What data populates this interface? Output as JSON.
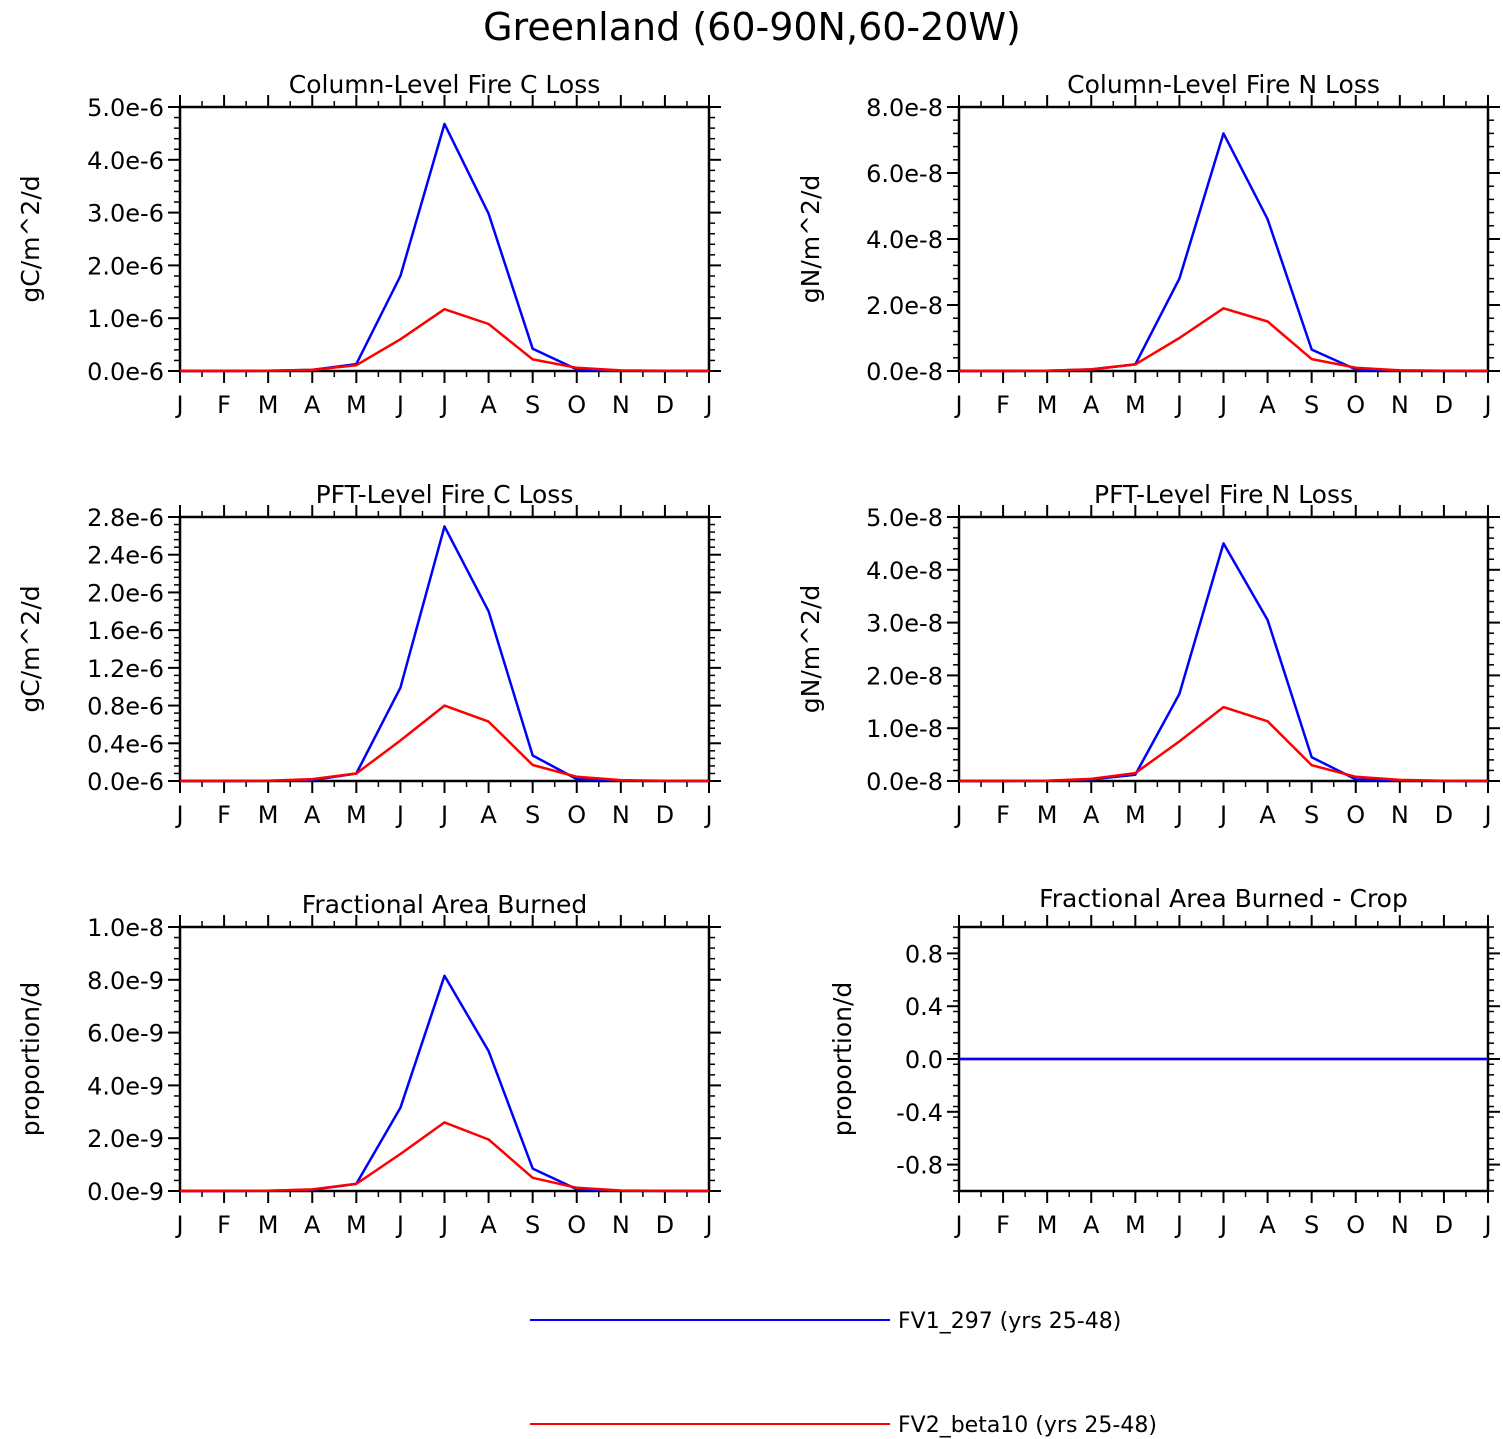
{
  "figure_title": "Greenland (60-90N,60-20W)",
  "colors": {
    "series1": "#0000ff",
    "series2": "#ff0000",
    "axis": "#000000"
  },
  "legend": [
    {
      "label": "FV1_297 (yrs 25-48)",
      "color": "#0000ff"
    },
    {
      "label": "FV2_beta10 (yrs 25-48)",
      "color": "#ff0000"
    }
  ],
  "chart_data": [
    {
      "type": "line",
      "title": "Column-Level Fire C Loss",
      "ylabel": "gC/m^2/d",
      "xlabel": "",
      "categories": [
        "J",
        "F",
        "M",
        "A",
        "M",
        "J",
        "J",
        "A",
        "S",
        "O",
        "N",
        "D",
        "J"
      ],
      "ylim": [
        0,
        5e-06
      ],
      "yticks": [
        0,
        1e-06,
        2e-06,
        3e-06,
        4e-06,
        5e-06
      ],
      "ytick_labels": [
        "0.0e-6",
        "1.0e-6",
        "2.0e-6",
        "3.0e-6",
        "4.0e-6",
        "5.0e-6"
      ],
      "series": [
        {
          "name": "FV1_297 (yrs 25-48)",
          "values": [
            0,
            0,
            3e-09,
            2e-08,
            1.3e-07,
            1.8e-06,
            4.68e-06,
            2.98e-06,
            4.2e-07,
            3e-08,
            5e-09,
            1e-09,
            0
          ]
        },
        {
          "name": "FV2_beta10 (yrs 25-48)",
          "values": [
            0,
            0,
            3e-09,
            2e-08,
            1.1e-07,
            6e-07,
            1.17e-06,
            8.9e-07,
            2.2e-07,
            6e-08,
            1.2e-08,
            3e-09,
            0
          ]
        }
      ]
    },
    {
      "type": "line",
      "title": "Column-Level Fire N Loss",
      "ylabel": "gN/m^2/d",
      "xlabel": "",
      "categories": [
        "J",
        "F",
        "M",
        "A",
        "M",
        "J",
        "J",
        "A",
        "S",
        "O",
        "N",
        "D",
        "J"
      ],
      "ylim": [
        0,
        8e-08
      ],
      "yticks": [
        0,
        2e-08,
        4e-08,
        6e-08,
        8e-08
      ],
      "ytick_labels": [
        "0.0e-8",
        "2.0e-8",
        "4.0e-8",
        "6.0e-8",
        "8.0e-8"
      ],
      "series": [
        {
          "name": "FV1_297 (yrs 25-48)",
          "values": [
            0,
            0,
            1e-10,
            5e-10,
            2e-09,
            2.8e-08,
            7.2e-08,
            4.6e-08,
            6.5e-09,
            5e-10,
            1e-10,
            2e-11,
            0
          ]
        },
        {
          "name": "FV2_beta10 (yrs 25-48)",
          "values": [
            0,
            0,
            1e-10,
            5e-10,
            2e-09,
            1e-08,
            1.9e-08,
            1.5e-08,
            3.6e-09,
            1e-09,
            2e-10,
            5e-11,
            0
          ]
        }
      ]
    },
    {
      "type": "line",
      "title": "PFT-Level Fire C Loss",
      "ylabel": "gC/m^2/d",
      "xlabel": "",
      "categories": [
        "J",
        "F",
        "M",
        "A",
        "M",
        "J",
        "J",
        "A",
        "S",
        "O",
        "N",
        "D",
        "J"
      ],
      "ylim": [
        0,
        2.8e-06
      ],
      "yticks": [
        0,
        4e-07,
        8e-07,
        1.2e-06,
        1.6e-06,
        2e-06,
        2.4e-06,
        2.8e-06
      ],
      "ytick_labels": [
        "0.0e-6",
        "0.4e-6",
        "0.8e-6",
        "1.2e-6",
        "1.6e-6",
        "2.0e-6",
        "2.4e-6",
        "2.8e-6"
      ],
      "series": [
        {
          "name": "FV1_297 (yrs 25-48)",
          "values": [
            0,
            0,
            2e-09,
            1e-08,
            8e-08,
            9.9e-07,
            2.7e-06,
            1.8e-06,
            2.7e-07,
            2e-08,
            4e-09,
            1e-09,
            0
          ]
        },
        {
          "name": "FV2_beta10 (yrs 25-48)",
          "values": [
            0,
            0,
            2e-09,
            2e-08,
            8e-08,
            4.3e-07,
            8e-07,
            6.3e-07,
            1.7e-07,
            4.5e-08,
            1e-08,
            2e-09,
            0
          ]
        }
      ]
    },
    {
      "type": "line",
      "title": "PFT-Level Fire N Loss",
      "ylabel": "gN/m^2/d",
      "xlabel": "",
      "categories": [
        "J",
        "F",
        "M",
        "A",
        "M",
        "J",
        "J",
        "A",
        "S",
        "O",
        "N",
        "D",
        "J"
      ],
      "ylim": [
        0,
        5e-08
      ],
      "yticks": [
        0,
        1e-08,
        2e-08,
        3e-08,
        4e-08,
        5e-08
      ],
      "ytick_labels": [
        "0.0e-8",
        "1.0e-8",
        "2.0e-8",
        "3.0e-8",
        "4.0e-8",
        "5.0e-8"
      ],
      "series": [
        {
          "name": "FV1_297 (yrs 25-48)",
          "values": [
            0,
            0,
            5e-11,
            3e-10,
            1.2e-09,
            1.65e-08,
            4.5e-08,
            3.05e-08,
            4.5e-09,
            3e-10,
            6e-11,
            2e-11,
            0
          ]
        },
        {
          "name": "FV2_beta10 (yrs 25-48)",
          "values": [
            0,
            0,
            5e-11,
            4e-10,
            1.5e-09,
            7.5e-09,
            1.4e-08,
            1.13e-08,
            3e-09,
            8e-10,
            2e-10,
            5e-11,
            0
          ]
        }
      ]
    },
    {
      "type": "line",
      "title": "Fractional Area Burned",
      "ylabel": "proportion/d",
      "xlabel": "",
      "categories": [
        "J",
        "F",
        "M",
        "A",
        "M",
        "J",
        "J",
        "A",
        "S",
        "O",
        "N",
        "D",
        "J"
      ],
      "ylim": [
        0,
        1e-08
      ],
      "yticks": [
        0,
        2e-09,
        4e-09,
        6e-09,
        8e-09,
        1e-08
      ],
      "ytick_labels": [
        "0.0e-9",
        "2.0e-9",
        "4.0e-9",
        "6.0e-9",
        "8.0e-9",
        "1.0e-8"
      ],
      "series": [
        {
          "name": "FV1_297 (yrs 25-48)",
          "values": [
            0,
            0,
            1e-11,
            5e-11,
            2.7e-10,
            3.15e-09,
            8.15e-09,
            5.3e-09,
            8.5e-10,
            7e-11,
            1e-11,
            2e-12,
            0
          ]
        },
        {
          "name": "FV2_beta10 (yrs 25-48)",
          "values": [
            0,
            0,
            1e-11,
            6e-11,
            2.7e-10,
            1.4e-09,
            2.6e-09,
            1.95e-09,
            5e-10,
            1.2e-10,
            2e-11,
            5e-12,
            0
          ]
        }
      ]
    },
    {
      "type": "line",
      "title": "Fractional Area Burned - Crop",
      "ylabel": "proportion/d",
      "xlabel": "",
      "categories": [
        "J",
        "F",
        "M",
        "A",
        "M",
        "J",
        "J",
        "A",
        "S",
        "O",
        "N",
        "D",
        "J"
      ],
      "ylim": [
        -1.0,
        1.0
      ],
      "yticks": [
        -0.8,
        -0.4,
        0.0,
        0.4,
        0.8
      ],
      "ytick_labels": [
        "-0.8",
        "-0.4",
        "0.0",
        "0.4",
        "0.8"
      ],
      "series": [
        {
          "name": "FV2_beta10 (yrs 25-48)",
          "values": [
            0,
            0,
            0,
            0,
            0,
            0,
            0,
            0,
            0,
            0,
            0,
            0,
            0
          ]
        },
        {
          "name": "FV1_297 (yrs 25-48)",
          "values": [
            0,
            0,
            0,
            0,
            0,
            0,
            0,
            0,
            0,
            0,
            0,
            0,
            0
          ]
        }
      ]
    }
  ]
}
